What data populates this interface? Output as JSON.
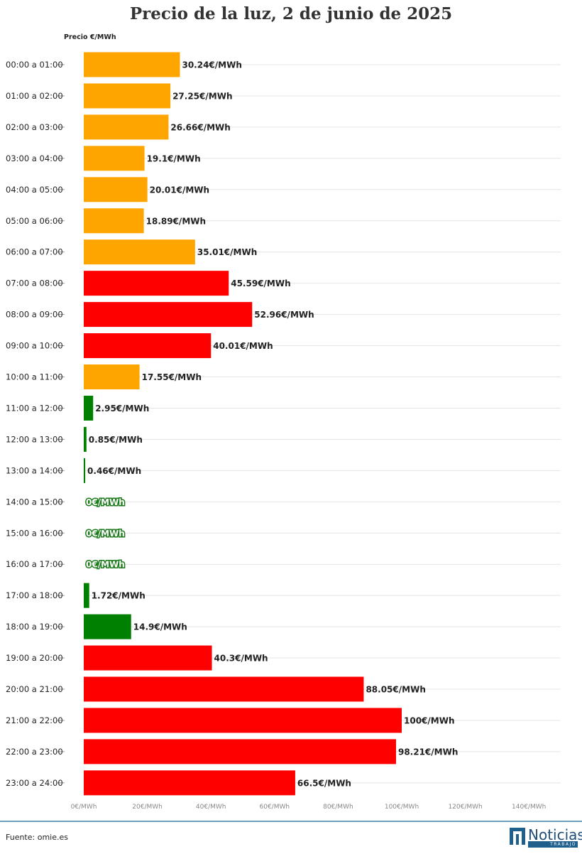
{
  "title": "Precio de la luz, 2 de junio de 2025",
  "source": "Fuente: omie.es",
  "logo": {
    "name": "Noticias",
    "subtitle": "TRABAJO"
  },
  "colors": {
    "low": "#008000",
    "medium": "#ffa500",
    "high": "#ff0000"
  },
  "chart_data": {
    "type": "bar",
    "orientation": "horizontal",
    "title": "Precio de la luz, 2 de junio de 2025",
    "ylabel": "Precio €/MWh",
    "xlim": [
      0,
      150
    ],
    "xticks": [
      "0€/MWh",
      "20€/MWh",
      "40€/MWh",
      "60€/MWh",
      "80€/MWh",
      "100€/MWh",
      "120€/MWh",
      "140€/MWh"
    ],
    "xtick_values": [
      0,
      20,
      40,
      60,
      80,
      100,
      120,
      140
    ],
    "grid": true,
    "categories": [
      "00:00 a 01:00",
      "01:00 a 02:00",
      "02:00 a 03:00",
      "03:00 a 04:00",
      "04:00 a 05:00",
      "05:00 a 06:00",
      "06:00 a 07:00",
      "07:00 a 08:00",
      "08:00 a 09:00",
      "09:00 a 10:00",
      "10:00 a 11:00",
      "11:00 a 12:00",
      "12:00 a 13:00",
      "13:00 a 14:00",
      "14:00 a 15:00",
      "15:00 a 16:00",
      "16:00 a 17:00",
      "17:00 a 18:00",
      "18:00 a 19:00",
      "19:00 a 20:00",
      "20:00 a 21:00",
      "21:00 a 22:00",
      "22:00 a 23:00",
      "23:00 a 24:00"
    ],
    "values": [
      30.24,
      27.25,
      26.66,
      19.1,
      20.01,
      18.89,
      35.01,
      45.59,
      52.96,
      40.01,
      17.55,
      2.95,
      0.85,
      0.46,
      0,
      0,
      0,
      1.72,
      14.9,
      40.3,
      88.05,
      100,
      98.21,
      66.5
    ],
    "labels": [
      "30.24€/MWh",
      "27.25€/MWh",
      "26.66€/MWh",
      "19.1€/MWh",
      "20.01€/MWh",
      "18.89€/MWh",
      "35.01€/MWh",
      "45.59€/MWh",
      "52.96€/MWh",
      "40.01€/MWh",
      "17.55€/MWh",
      "2.95€/MWh",
      "0.85€/MWh",
      "0.46€/MWh",
      "0€/MWh",
      "0€/MWh",
      "0€/MWh",
      "1.72€/MWh",
      "14.9€/MWh",
      "40.3€/MWh",
      "88.05€/MWh",
      "100€/MWh",
      "98.21€/MWh",
      "66.5€/MWh"
    ],
    "levels": [
      "medium",
      "medium",
      "medium",
      "medium",
      "medium",
      "medium",
      "medium",
      "high",
      "high",
      "high",
      "medium",
      "low",
      "low",
      "low",
      "low",
      "low",
      "low",
      "low",
      "low",
      "high",
      "high",
      "high",
      "high",
      "high"
    ]
  }
}
